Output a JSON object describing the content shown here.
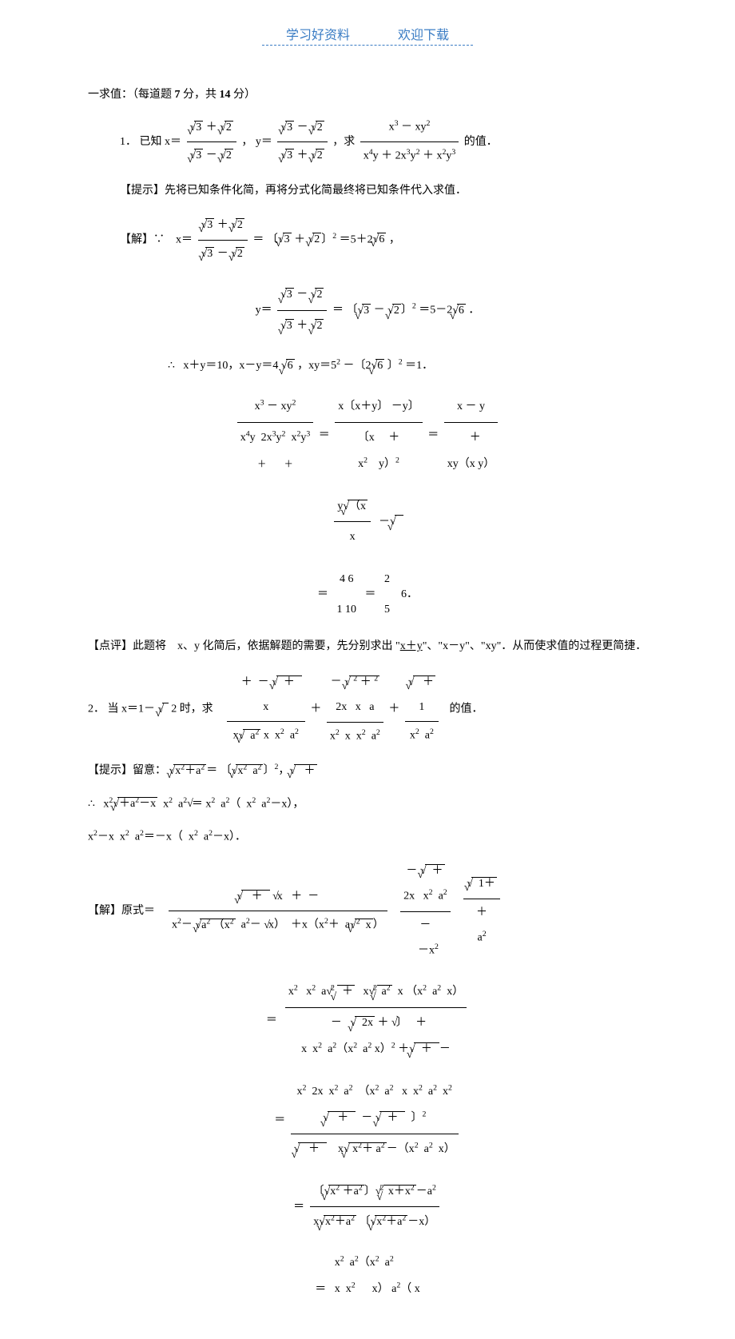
{
  "header": {
    "left": "学习好资料",
    "right": "欢迎下载"
  },
  "section1": {
    "title": "一求值：（每道题",
    "points_each": "7",
    "points_mid": "分，共",
    "points_total": "14",
    "points_end": "分）"
  },
  "problem1": {
    "num": "1．",
    "known": "已知",
    "x_eq": "x＝",
    "y_eq": "y＝",
    "find": "，求",
    "value_of": "的值．",
    "hint_label": "【提示】",
    "hint_text": "先将已知条件化简，再将分式化简最终将已知条件代入求值．",
    "solve_label": "【解】∵",
    "therefore": "∴",
    "calc1": "x＋y＝10，x－y＝4",
    "calc2": "，xy＝5",
    "calc3": "－〔2",
    "calc4": "〕",
    "calc5": "＝1．",
    "comment_label": "【点评】",
    "comment_text": "此题将　x、y 化简后，依据解题的需要，先分别求出 \"",
    "comment_xy": "x＋y",
    "comment_text2": "\"、\"x－y\"、\"xy\"．从而使求值的过程更简捷．",
    "sqrt3": "3",
    "sqrt2": "2",
    "sqrt6": "6",
    "five_plus": "＝5＋2",
    "five_minus": "＝5－2",
    "comma": "，",
    "period": "．",
    "eq_sign": "＝",
    "sq_bracket_l": "〔",
    "sq_bracket_r": "〕",
    "sup2": "2",
    "result_46": "4",
    "result_6": "6",
    "result_1": "1",
    "result_10": "10",
    "result_2": "2",
    "result_5": "5"
  },
  "problem2": {
    "num": "2．",
    "when": "当",
    "x_eq": "x＝1－",
    "two": "2",
    "when2": "时，求",
    "value_of": "的值．",
    "hint_label": "【提示】",
    "hint_text": "留意：",
    "therefore": "∴",
    "solve_label": "【解】原式＝",
    "x2": "x",
    "a2": "a",
    "sup2": "2",
    "plus": "＋",
    "minus": "－",
    "x_label": "x",
    "paren_l": "（",
    "paren_r": "）",
    "eq": "＝",
    "comma": "，",
    "sqrt_sym": "√"
  },
  "styles": {
    "header_color": "#3a7cc4",
    "text_color": "#000000",
    "bg_color": "#ffffff",
    "font_size_body": 14,
    "font_size_header": 16
  }
}
